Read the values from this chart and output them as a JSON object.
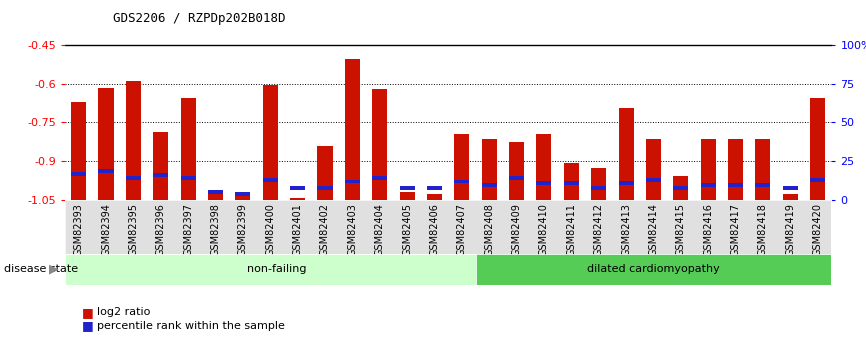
{
  "title": "GDS2206 / RZPDp202B018D",
  "samples": [
    "GSM82393",
    "GSM82394",
    "GSM82395",
    "GSM82396",
    "GSM82397",
    "GSM82398",
    "GSM82399",
    "GSM82400",
    "GSM82401",
    "GSM82402",
    "GSM82403",
    "GSM82404",
    "GSM82405",
    "GSM82406",
    "GSM82407",
    "GSM82408",
    "GSM82409",
    "GSM82410",
    "GSM82411",
    "GSM82412",
    "GSM82413",
    "GSM82414",
    "GSM82415",
    "GSM82416",
    "GSM82417",
    "GSM82418",
    "GSM82419",
    "GSM82420"
  ],
  "log2_ratio": [
    -0.67,
    -0.615,
    -0.59,
    -0.785,
    -0.655,
    -1.01,
    -1.02,
    -0.605,
    -1.04,
    -0.84,
    -0.505,
    -0.62,
    -1.02,
    -1.025,
    -0.795,
    -0.815,
    -0.825,
    -0.795,
    -0.905,
    -0.925,
    -0.695,
    -0.815,
    -0.955,
    -0.815,
    -0.815,
    -0.815,
    -1.025,
    -0.655
  ],
  "percentile": [
    17,
    19,
    14,
    16,
    14,
    5,
    4,
    13,
    8,
    8,
    12,
    14,
    8,
    8,
    12,
    10,
    14,
    11,
    11,
    8,
    11,
    13,
    8,
    10,
    10,
    10,
    8,
    13
  ],
  "ylim_left": [
    -1.05,
    -0.45
  ],
  "ylim_right": [
    0,
    100
  ],
  "yticks_left": [
    -1.05,
    -0.9,
    -0.75,
    -0.6,
    -0.45
  ],
  "yticks_right": [
    0,
    25,
    50,
    75,
    100
  ],
  "ytick_labels_right": [
    "0",
    "25",
    "50",
    "75",
    "100%"
  ],
  "group1_label": "non-failing",
  "group1_count": 15,
  "group2_label": "dilated cardiomyopathy",
  "group2_count": 13,
  "bar_color_red": "#cc1100",
  "bar_color_blue": "#2222cc",
  "group1_color": "#ccffcc",
  "group2_color": "#55cc55",
  "bar_width": 0.55,
  "tick_label_fontsize": 7,
  "axis_label_fontsize": 8,
  "title_fontsize": 9,
  "legend_fontsize": 8
}
